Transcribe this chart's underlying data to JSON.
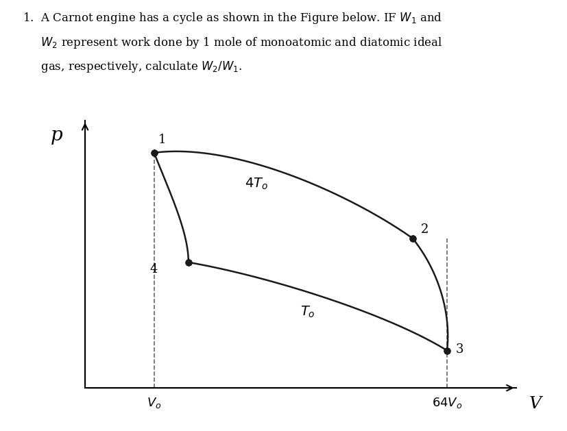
{
  "background_color": "#ffffff",
  "curve_color": "#1a1a1a",
  "point_color": "#1a1a1a",
  "dashed_color": "#666666",
  "V0": 1.0,
  "V64": 64.0,
  "T_hot_factor": 4.0,
  "T_cold_factor": 1.0,
  "gamma_vis": 1.45,
  "text_line1": "1.  A Carnot engine has a cycle as shown in the Figure below. IF $W_1$ and",
  "text_line2": "     $W_2$ represent work done by 1 mole of monoatomic and diatomic ideal",
  "text_line3": "     gas, respectively, calculate $W_2/W_1$.",
  "label_p": "p",
  "label_v": "V",
  "label_v0": "$V_o$",
  "label_64v0": "$64V_o$",
  "label_4T0": "$4T_o$",
  "label_T0": "$T_o$",
  "label_1": "1",
  "label_2": "2",
  "label_3": "3",
  "label_4": "4",
  "lw": 1.8,
  "ms": 7
}
